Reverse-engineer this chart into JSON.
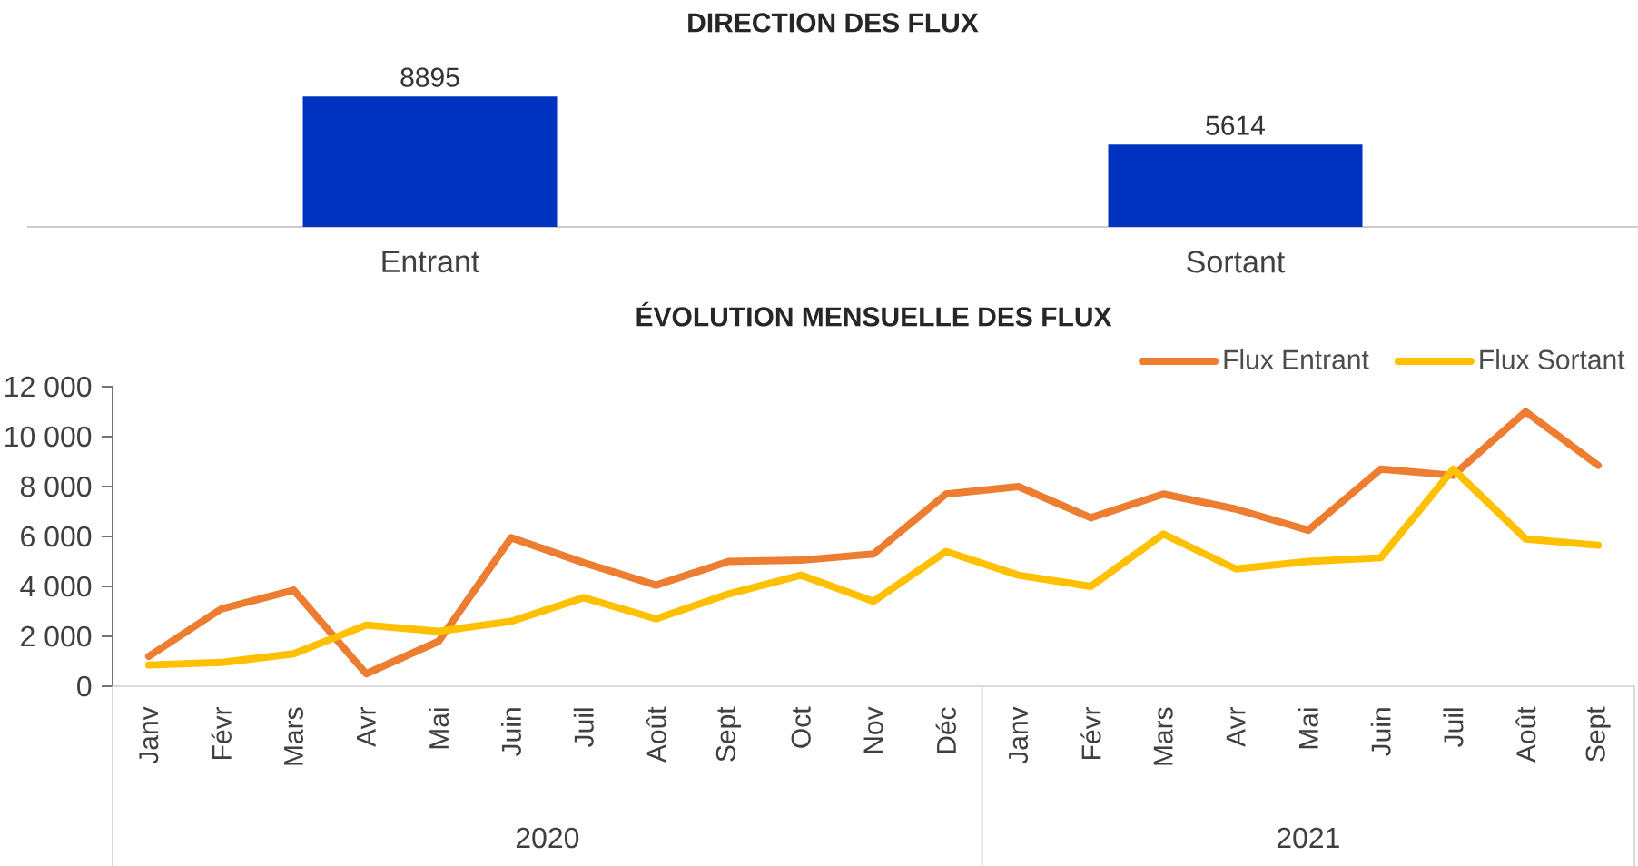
{
  "chart_data": [
    {
      "type": "bar",
      "title": "DIRECTION DES FLUX",
      "categories": [
        "Entrant",
        "Sortant"
      ],
      "values": [
        8895,
        5614
      ],
      "color": "#0033c0",
      "data_labels": true
    },
    {
      "type": "line",
      "title": "ÉVOLUTION MENSUELLE DES FLUX",
      "categories": [
        "Janv",
        "Févr",
        "Mars",
        "Avr",
        "Mai",
        "Juin",
        "Juil",
        "Août",
        "Sept",
        "Oct",
        "Nov",
        "Déc",
        "Janv",
        "Févr",
        "Mars",
        "Avr",
        "Mai",
        "Juin",
        "Juil",
        "Août",
        "Sept"
      ],
      "series": [
        {
          "name": "Flux Entrant",
          "color": "#ed7d31",
          "values": [
            1200,
            3100,
            3850,
            500,
            1800,
            5950,
            4950,
            4050,
            5000,
            5050,
            5300,
            7700,
            8000,
            6750,
            7700,
            7100,
            6250,
            8700,
            8450,
            11000,
            8850
          ]
        },
        {
          "name": "Flux Sortant",
          "color": "#ffc000",
          "values": [
            850,
            950,
            1300,
            2450,
            2200,
            2600,
            3550,
            2700,
            3700,
            4450,
            3400,
            5400,
            4450,
            4000,
            6100,
            4700,
            5000,
            5150,
            8700,
            5900,
            5650
          ]
        }
      ],
      "ylim": [
        0,
        12000
      ],
      "yticks": [
        0,
        {
          "value": 2000,
          "label": "2 000"
        },
        {
          "value": 4000,
          "label": "4 000"
        },
        {
          "value": 6000,
          "label": "6 000"
        },
        {
          "value": 8000,
          "label": "8 000"
        },
        {
          "value": 10000,
          "label": "10 000"
        },
        {
          "value": 12000,
          "label": "12 000"
        }
      ],
      "legend": "top right",
      "annotations": [
        "2020",
        "2021"
      ]
    }
  ]
}
